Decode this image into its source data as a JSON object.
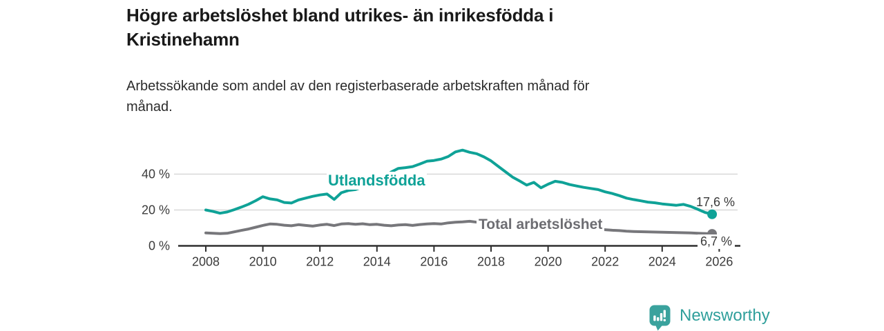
{
  "header": {
    "title": "Högre arbetslöshet bland utrikes- än inrikesfödda i Kristinehamn",
    "subtitle": "Arbetssökande som andel av den registerbaserade arbetskraften månad för månad."
  },
  "chart_data": {
    "type": "line",
    "title": "Högre arbetslöshet bland utrikes- än inrikesfödda i Kristinehamn",
    "xlabel": "",
    "ylabel": "",
    "x_axis": {
      "tick_years": [
        2008,
        2010,
        2012,
        2014,
        2016,
        2018,
        2020,
        2022,
        2024,
        2026
      ],
      "lim": [
        2007.0,
        2026.75
      ]
    },
    "y_axis": {
      "ticks": [
        {
          "label": "0 %",
          "value": 0
        },
        {
          "label": "20 %",
          "value": 20
        },
        {
          "label": "40 %",
          "value": 40
        }
      ],
      "lim": [
        0,
        56
      ],
      "grid": true
    },
    "legend_position": "inline-labels",
    "series": [
      {
        "name": "Utlandsfödda",
        "color": "#0fa297",
        "end_label": "17,6 %",
        "end_value": 17.6,
        "points": [
          [
            2008.0,
            20.0
          ],
          [
            2008.25,
            19.2
          ],
          [
            2008.5,
            18.2
          ],
          [
            2008.75,
            18.9
          ],
          [
            2009.0,
            20.2
          ],
          [
            2009.25,
            21.6
          ],
          [
            2009.5,
            23.2
          ],
          [
            2009.75,
            25.2
          ],
          [
            2010.0,
            27.4
          ],
          [
            2010.25,
            26.2
          ],
          [
            2010.5,
            25.6
          ],
          [
            2010.75,
            24.2
          ],
          [
            2011.0,
            23.9
          ],
          [
            2011.25,
            25.6
          ],
          [
            2011.5,
            26.6
          ],
          [
            2011.75,
            27.6
          ],
          [
            2012.0,
            28.4
          ],
          [
            2012.25,
            28.9
          ],
          [
            2012.5,
            25.9
          ],
          [
            2012.75,
            29.6
          ],
          [
            2013.0,
            30.9
          ],
          [
            2013.25,
            31.4
          ],
          [
            2013.5,
            32.8
          ],
          [
            2013.75,
            34.4
          ],
          [
            2014.0,
            36.4
          ],
          [
            2014.25,
            38.6
          ],
          [
            2014.5,
            41.2
          ],
          [
            2014.75,
            43.2
          ],
          [
            2015.0,
            43.6
          ],
          [
            2015.25,
            44.2
          ],
          [
            2015.5,
            45.6
          ],
          [
            2015.75,
            47.2
          ],
          [
            2016.0,
            47.6
          ],
          [
            2016.25,
            48.4
          ],
          [
            2016.5,
            49.8
          ],
          [
            2016.75,
            52.4
          ],
          [
            2017.0,
            53.4
          ],
          [
            2017.25,
            52.2
          ],
          [
            2017.5,
            51.4
          ],
          [
            2017.75,
            49.6
          ],
          [
            2018.0,
            47.4
          ],
          [
            2018.25,
            44.4
          ],
          [
            2018.5,
            41.4
          ],
          [
            2018.75,
            38.4
          ],
          [
            2019.0,
            36.2
          ],
          [
            2019.25,
            33.9
          ],
          [
            2019.5,
            35.4
          ],
          [
            2019.75,
            32.4
          ],
          [
            2020.0,
            34.4
          ],
          [
            2020.25,
            36.0
          ],
          [
            2020.5,
            35.4
          ],
          [
            2020.75,
            34.2
          ],
          [
            2021.0,
            33.4
          ],
          [
            2021.25,
            32.6
          ],
          [
            2021.5,
            32.0
          ],
          [
            2021.75,
            31.4
          ],
          [
            2022.0,
            30.1
          ],
          [
            2022.25,
            29.2
          ],
          [
            2022.5,
            28.0
          ],
          [
            2022.75,
            26.6
          ],
          [
            2023.0,
            25.8
          ],
          [
            2023.25,
            25.1
          ],
          [
            2023.5,
            24.4
          ],
          [
            2023.75,
            24.0
          ],
          [
            2024.0,
            23.4
          ],
          [
            2024.25,
            23.0
          ],
          [
            2024.5,
            22.6
          ],
          [
            2024.75,
            23.1
          ],
          [
            2025.0,
            22.0
          ],
          [
            2025.25,
            20.4
          ],
          [
            2025.5,
            18.6
          ],
          [
            2025.75,
            17.6
          ]
        ]
      },
      {
        "name": "Total arbetslöshet",
        "color": "#77777b",
        "end_label": "6,7 %",
        "end_value": 6.7,
        "points": [
          [
            2008.0,
            7.2
          ],
          [
            2008.25,
            7.0
          ],
          [
            2008.5,
            6.8
          ],
          [
            2008.75,
            7.0
          ],
          [
            2009.0,
            7.8
          ],
          [
            2009.25,
            8.6
          ],
          [
            2009.5,
            9.4
          ],
          [
            2009.75,
            10.4
          ],
          [
            2010.0,
            11.4
          ],
          [
            2010.25,
            12.2
          ],
          [
            2010.5,
            12.0
          ],
          [
            2010.75,
            11.5
          ],
          [
            2011.0,
            11.2
          ],
          [
            2011.25,
            11.8
          ],
          [
            2011.5,
            11.4
          ],
          [
            2011.75,
            11.0
          ],
          [
            2012.0,
            11.6
          ],
          [
            2012.25,
            12.0
          ],
          [
            2012.5,
            11.3
          ],
          [
            2012.75,
            12.2
          ],
          [
            2013.0,
            12.4
          ],
          [
            2013.25,
            12.0
          ],
          [
            2013.5,
            12.3
          ],
          [
            2013.75,
            11.8
          ],
          [
            2014.0,
            12.0
          ],
          [
            2014.25,
            11.5
          ],
          [
            2014.5,
            11.2
          ],
          [
            2014.75,
            11.6
          ],
          [
            2015.0,
            11.8
          ],
          [
            2015.25,
            11.4
          ],
          [
            2015.5,
            11.9
          ],
          [
            2015.75,
            12.2
          ],
          [
            2016.0,
            12.4
          ],
          [
            2016.25,
            12.2
          ],
          [
            2016.5,
            12.8
          ],
          [
            2016.75,
            13.2
          ],
          [
            2017.0,
            13.4
          ],
          [
            2017.25,
            13.7
          ],
          [
            2017.5,
            13.2
          ],
          [
            2017.75,
            12.8
          ],
          [
            2018.0,
            12.4
          ],
          [
            2018.25,
            12.0
          ],
          [
            2018.5,
            11.5
          ],
          [
            2018.75,
            11.0
          ],
          [
            2019.0,
            10.8
          ],
          [
            2019.25,
            10.5
          ],
          [
            2019.5,
            10.7
          ],
          [
            2019.75,
            10.4
          ],
          [
            2020.0,
            10.8
          ],
          [
            2020.25,
            11.2
          ],
          [
            2020.5,
            11.0
          ],
          [
            2020.75,
            10.5
          ],
          [
            2021.0,
            10.1
          ],
          [
            2021.25,
            9.8
          ],
          [
            2021.5,
            9.5
          ],
          [
            2021.75,
            9.2
          ],
          [
            2022.0,
            9.0
          ],
          [
            2022.25,
            8.7
          ],
          [
            2022.5,
            8.5
          ],
          [
            2022.75,
            8.2
          ],
          [
            2023.0,
            8.0
          ],
          [
            2023.25,
            7.9
          ],
          [
            2023.5,
            7.8
          ],
          [
            2023.75,
            7.7
          ],
          [
            2024.0,
            7.6
          ],
          [
            2024.25,
            7.5
          ],
          [
            2024.5,
            7.4
          ],
          [
            2024.75,
            7.3
          ],
          [
            2025.0,
            7.2
          ],
          [
            2025.25,
            7.0
          ],
          [
            2025.5,
            6.9
          ],
          [
            2025.75,
            6.7
          ]
        ]
      }
    ]
  },
  "footer": {
    "brand": "Newsworthy",
    "logo_icon": "speech-bubble-bar-chart-icon"
  },
  "colors": {
    "accent_teal": "#0fa297",
    "line_gray": "#77777b",
    "axis": "#2e2e2e",
    "grid": "#d8d8d8",
    "tick_text": "#3b3b3b",
    "title_text": "#191919",
    "brand_teal": "#2f9f9b",
    "logo_fill": "#3aa29d"
  }
}
